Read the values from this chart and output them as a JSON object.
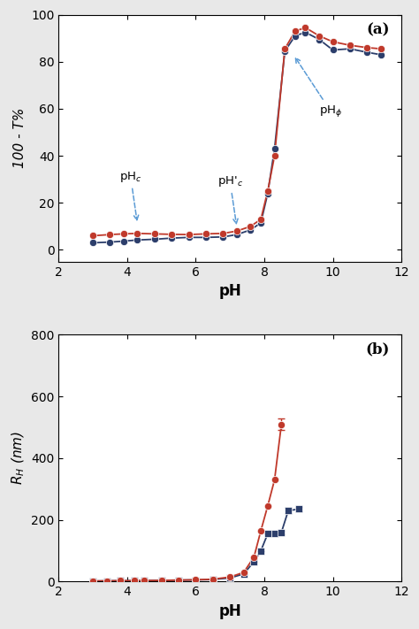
{
  "panel_a": {
    "series1_ph": [
      3.0,
      3.5,
      3.9,
      4.3,
      4.8,
      5.3,
      5.8,
      6.3,
      6.8,
      7.2,
      7.6,
      7.9,
      8.1,
      8.3,
      8.6,
      8.9,
      9.2,
      9.6,
      10.0,
      10.5,
      11.0,
      11.4
    ],
    "series1_y": [
      6.0,
      6.5,
      6.8,
      7.0,
      6.8,
      6.6,
      6.5,
      6.8,
      7.0,
      8.0,
      10.0,
      13.0,
      25.0,
      40.0,
      85.5,
      93.0,
      94.5,
      91.0,
      88.5,
      87.0,
      86.0,
      85.5
    ],
    "series2_ph": [
      3.0,
      3.5,
      3.9,
      4.3,
      4.8,
      5.3,
      5.8,
      6.3,
      6.8,
      7.2,
      7.6,
      7.9,
      8.1,
      8.3,
      8.6,
      8.9,
      9.2,
      9.6,
      10.0,
      10.5,
      11.0,
      11.4
    ],
    "series2_y": [
      3.0,
      3.3,
      3.7,
      4.2,
      4.5,
      5.0,
      5.3,
      5.3,
      5.5,
      6.5,
      8.5,
      11.5,
      24.0,
      43.0,
      84.5,
      91.0,
      92.5,
      89.5,
      85.0,
      85.5,
      84.0,
      83.0
    ],
    "series1_color": "#c0392b",
    "series2_color": "#2c3e6b",
    "ylabel": "100 - T%",
    "xlabel": "pH",
    "ylim": [
      -5,
      100
    ],
    "xlim": [
      2,
      12
    ],
    "yticks": [
      0,
      20,
      40,
      60,
      80,
      100
    ],
    "xticks": [
      2,
      4,
      6,
      8,
      10,
      12
    ],
    "label_a": "(a)"
  },
  "panel_b": {
    "series1_ph": [
      3.0,
      3.4,
      3.8,
      4.2,
      4.5,
      5.0,
      5.5,
      6.0,
      6.5,
      7.0,
      7.4,
      7.7,
      7.9,
      8.1,
      8.3,
      8.5
    ],
    "series1_y": [
      2.0,
      2.5,
      3.0,
      3.0,
      3.5,
      4.0,
      5.0,
      6.0,
      8.0,
      15.0,
      30.0,
      80.0,
      165.0,
      245.0,
      330.0,
      510.0
    ],
    "series1_err": [
      0.0,
      0.0,
      0.0,
      0.0,
      0.0,
      0.0,
      0.0,
      0.0,
      0.0,
      0.0,
      0.0,
      0.0,
      0.0,
      0.0,
      0.0,
      18.0
    ],
    "series2_ph": [
      3.0,
      3.4,
      3.8,
      4.2,
      4.5,
      5.0,
      5.5,
      6.0,
      6.5,
      7.0,
      7.4,
      7.7,
      7.9,
      8.1,
      8.3,
      8.5,
      8.7,
      9.0
    ],
    "series2_y": [
      2.0,
      2.5,
      3.0,
      3.0,
      3.5,
      4.0,
      5.0,
      5.5,
      7.0,
      12.0,
      25.0,
      65.0,
      100.0,
      155.0,
      155.0,
      160.0,
      230.0,
      235.0
    ],
    "series2_err": [
      0.0,
      0.0,
      0.0,
      0.0,
      0.0,
      0.0,
      0.0,
      0.0,
      0.0,
      0.0,
      0.0,
      0.0,
      0.0,
      0.0,
      0.0,
      6.0,
      8.0,
      8.0
    ],
    "series1_color": "#c0392b",
    "series2_color": "#2c3e6b",
    "series1_marker": "o",
    "series2_marker": "s",
    "ylabel": "R$_{H}$ (nm)",
    "xlabel": "pH",
    "ylim": [
      0,
      800
    ],
    "xlim": [
      2,
      12
    ],
    "yticks": [
      0,
      200,
      400,
      600,
      800
    ],
    "xticks": [
      2,
      4,
      6,
      8,
      10,
      12
    ],
    "label_b": "(b)"
  }
}
